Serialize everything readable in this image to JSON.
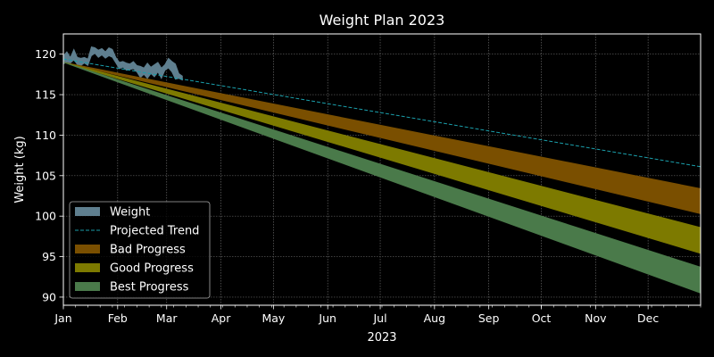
{
  "chart_data": {
    "type": "area",
    "title": "Weight Plan 2023",
    "xlabel": "2023",
    "ylabel": "Weight (kg)",
    "xlim": [
      "2023-01-01",
      "2023-12-31"
    ],
    "ylim": [
      89,
      122.5
    ],
    "grid": true,
    "legend_position": "lower-left",
    "x_tick_labels": [
      "Jan",
      "Feb",
      "Mar",
      "Apr",
      "May",
      "Jun",
      "Jul",
      "Aug",
      "Sep",
      "Oct",
      "Nov",
      "Dec"
    ],
    "y_ticks": [
      90,
      95,
      100,
      105,
      110,
      115,
      120
    ],
    "series": [
      {
        "name": "Weight",
        "kind": "band",
        "color": "#5f7f8f",
        "x": [
          "2023-01-01",
          "2023-01-03",
          "2023-01-05",
          "2023-01-07",
          "2023-01-09",
          "2023-01-11",
          "2023-01-13",
          "2023-01-15",
          "2023-01-17",
          "2023-01-19",
          "2023-01-21",
          "2023-01-23",
          "2023-01-25",
          "2023-01-27",
          "2023-01-29",
          "2023-01-31",
          "2023-02-02",
          "2023-02-04",
          "2023-02-06",
          "2023-02-08",
          "2023-02-10",
          "2023-02-12",
          "2023-02-14",
          "2023-02-16",
          "2023-02-18",
          "2023-02-20",
          "2023-02-22",
          "2023-02-24",
          "2023-02-26",
          "2023-02-28",
          "2023-03-02",
          "2023-03-04",
          "2023-03-06",
          "2023-03-08",
          "2023-03-10"
        ],
        "low": [
          118.8,
          119.0,
          118.9,
          119.3,
          118.7,
          118.6,
          118.9,
          118.6,
          119.8,
          120.1,
          119.6,
          119.9,
          119.5,
          119.8,
          119.6,
          118.9,
          118.2,
          118.4,
          118.0,
          118.1,
          118.2,
          117.8,
          117.1,
          117.5,
          117.0,
          117.6,
          117.2,
          117.8,
          117.0,
          118.0,
          118.3,
          117.8,
          116.9,
          117.0,
          116.8
        ],
        "high": [
          119.8,
          120.3,
          119.6,
          120.6,
          119.6,
          119.5,
          119.6,
          119.4,
          120.9,
          120.8,
          120.5,
          120.7,
          120.3,
          120.8,
          120.6,
          119.6,
          119.0,
          119.1,
          118.9,
          118.8,
          119.1,
          118.6,
          118.5,
          118.3,
          118.9,
          118.4,
          118.7,
          119.0,
          118.3,
          118.7,
          119.5,
          119.1,
          118.8,
          117.6,
          117.3
        ]
      },
      {
        "name": "Projected Trend",
        "kind": "line",
        "style": "dashed",
        "color": "#1a9ca8",
        "x": [
          "2023-01-01",
          "2023-12-31"
        ],
        "y": [
          119.4,
          106.1
        ]
      },
      {
        "name": "Bad Progress",
        "kind": "band",
        "color": "#7a4f00",
        "x": [
          "2023-01-01",
          "2023-12-31"
        ],
        "low": [
          119.0,
          100.3
        ],
        "high": [
          119.0,
          103.4
        ]
      },
      {
        "name": "Good Progress",
        "kind": "band",
        "color": "#7d7a00",
        "x": [
          "2023-01-01",
          "2023-12-31"
        ],
        "low": [
          119.0,
          95.4
        ],
        "high": [
          119.0,
          98.6
        ]
      },
      {
        "name": "Best Progress",
        "kind": "band",
        "color": "#4a7a4a",
        "x": [
          "2023-01-01",
          "2023-12-31"
        ],
        "low": [
          119.0,
          90.5
        ],
        "high": [
          119.0,
          93.7
        ]
      }
    ]
  }
}
